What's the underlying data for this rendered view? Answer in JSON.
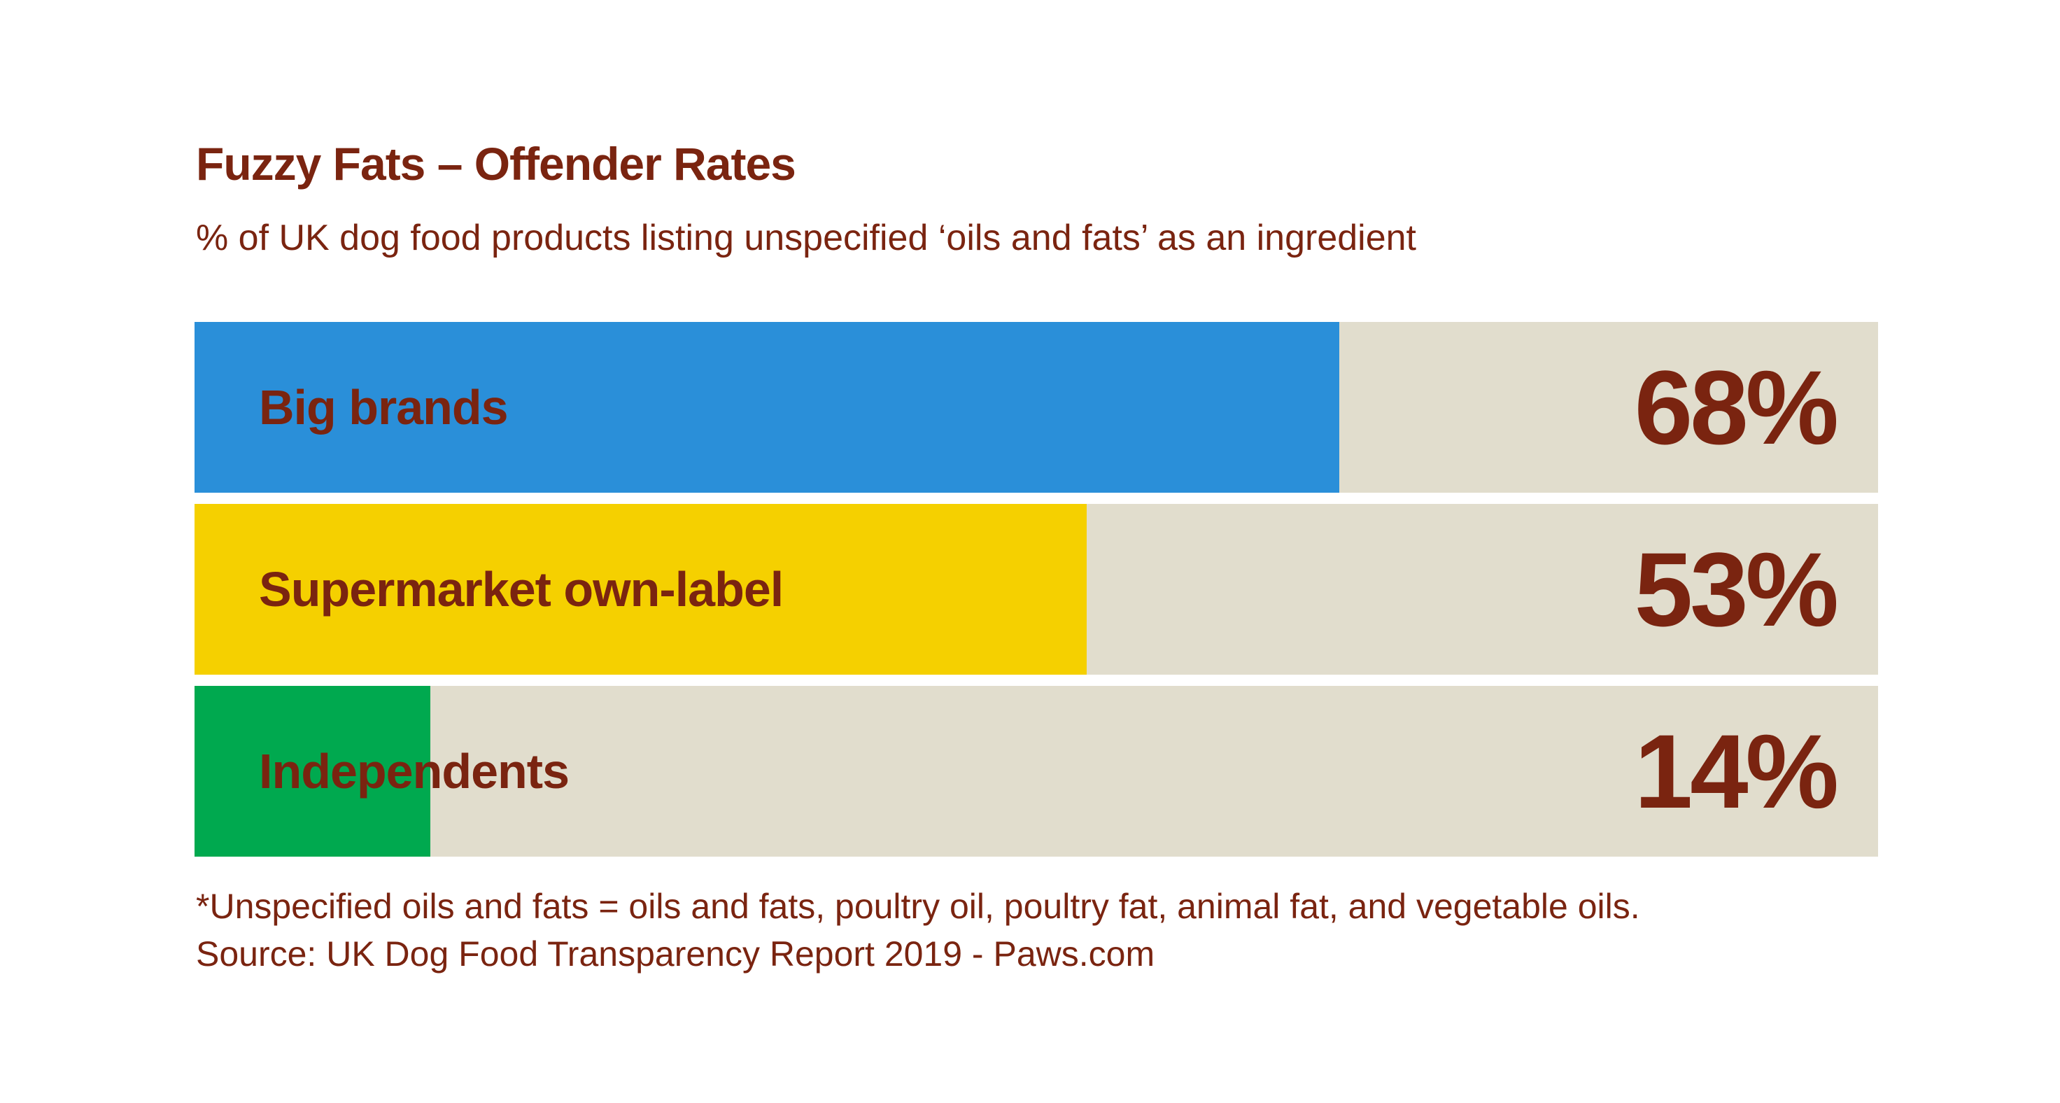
{
  "chart_data": {
    "type": "bar",
    "orientation": "horizontal",
    "title": "Fuzzy Fats – Offender Rates",
    "subtitle": "% of UK dog food products listing unspecified ‘oils and fats’ as an ingredient",
    "categories": [
      "Big brands",
      "Supermarket own-label",
      "Independents"
    ],
    "values": [
      68,
      53,
      14
    ],
    "value_labels": [
      "68%",
      "53%",
      "14%"
    ],
    "xlim": [
      0,
      100
    ],
    "unit": "%",
    "grid": false,
    "colors": [
      "#2a8fd9",
      "#f5d000",
      "#00a94f"
    ],
    "track_color": "#e1ddcd",
    "text_color": "#7a2410",
    "footnote": "*Unspecified oils and fats = oils and fats, poultry oil, poultry fat, animal fat, and vegetable oils.",
    "source": "Source: UK Dog Food Transparency Report 2019 - Paws.com"
  }
}
